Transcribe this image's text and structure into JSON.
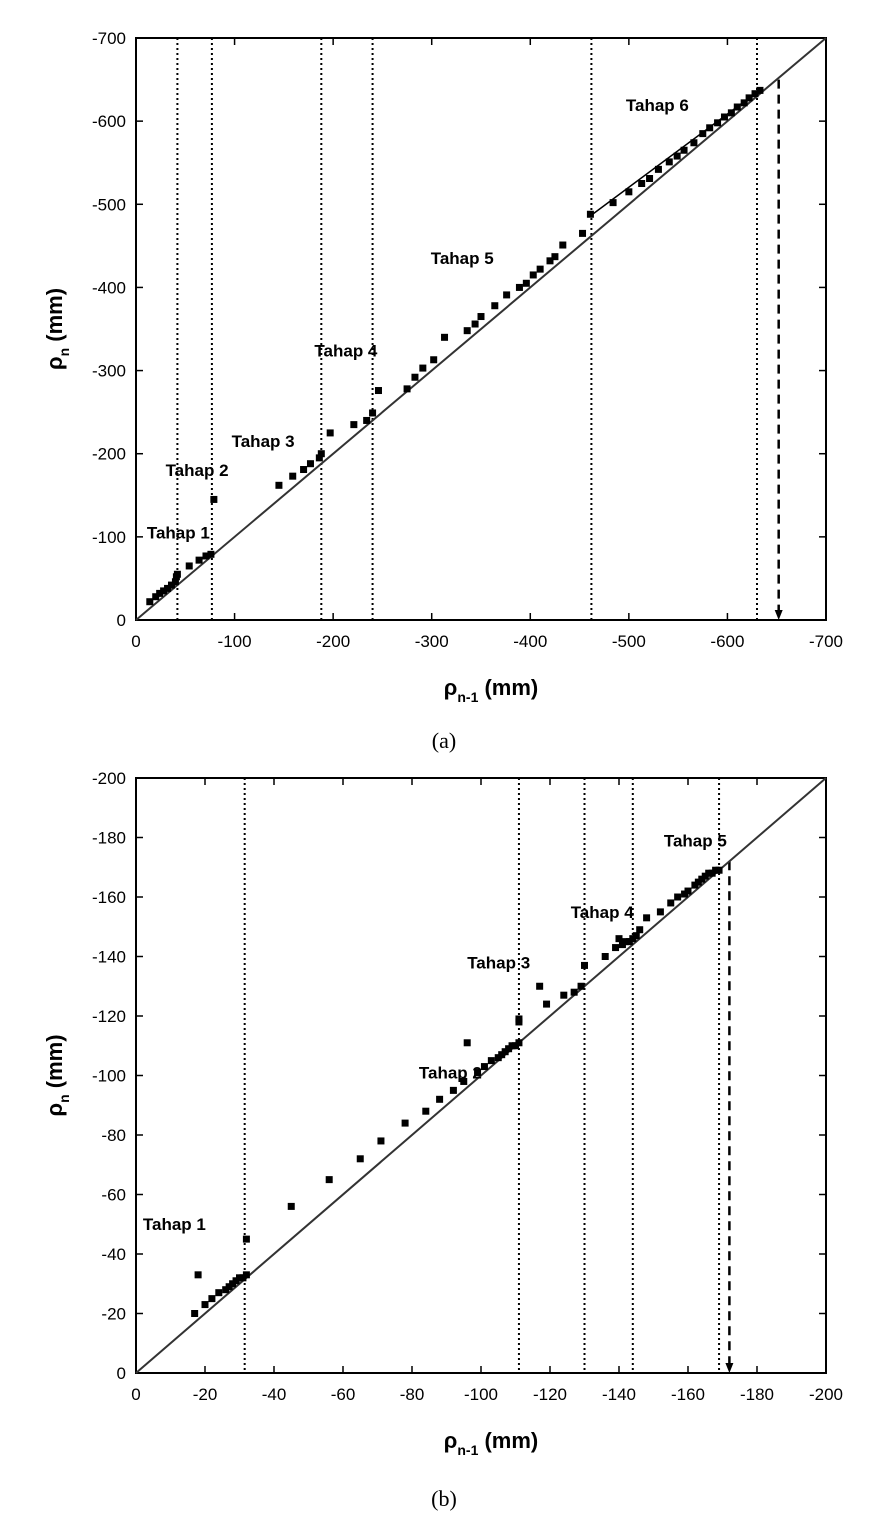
{
  "chart_data": [
    {
      "type": "scatter",
      "caption": "(a)",
      "xlabel": {
        "symbol": "ρ",
        "sub": "n-1",
        "unit": " (mm)"
      },
      "ylabel": {
        "symbol": "ρ",
        "sub": "n",
        "unit": " (mm)"
      },
      "xlim": [
        0,
        -700
      ],
      "ylim": [
        0,
        -700
      ],
      "xticks": [
        0,
        -100,
        -200,
        -300,
        -400,
        -500,
        -600,
        -700
      ],
      "yticks": [
        0,
        -100,
        -200,
        -300,
        -400,
        -500,
        -600,
        -700
      ],
      "xtick_labels": [
        "0",
        "-100",
        "-200",
        "-300",
        "-400",
        "-500",
        "-600",
        "-700"
      ],
      "ytick_labels": [
        "0",
        "-100",
        "-200",
        "-300",
        "-400",
        "-500",
        "-600",
        "-700"
      ],
      "grid": false,
      "reference_line": {
        "from": [
          0,
          0
        ],
        "to": [
          -700,
          -700
        ]
      },
      "stage_boundaries_x": [
        -42,
        -77,
        -188,
        -240,
        -462,
        -630
      ],
      "asymptote_x": -652,
      "asymptote_y_top": -650,
      "stages": [
        {
          "label": "Tahap 1",
          "x": -11,
          "y": -98
        },
        {
          "label": "Tahap 2",
          "x": -30,
          "y": -173
        },
        {
          "label": "Tahap 3",
          "x": -97,
          "y": -208
        },
        {
          "label": "Tahap 4",
          "x": -181,
          "y": -317
        },
        {
          "label": "Tahap 5",
          "x": -299,
          "y": -428
        },
        {
          "label": "Tahap 6",
          "x": -497,
          "y": -612
        }
      ],
      "trend_segments": [
        {
          "from": [
            -462,
            -487
          ],
          "to": [
            -630,
            -635
          ]
        }
      ],
      "points": [
        [
          -14,
          -22
        ],
        [
          -20,
          -28
        ],
        [
          -24,
          -32
        ],
        [
          -28,
          -35
        ],
        [
          -32,
          -38
        ],
        [
          -36,
          -42
        ],
        [
          -40,
          -46
        ],
        [
          -41,
          -52
        ],
        [
          -42,
          -55
        ],
        [
          -54,
          -65
        ],
        [
          -64,
          -72
        ],
        [
          -71,
          -77
        ],
        [
          -76,
          -79
        ],
        [
          -79,
          -145
        ],
        [
          -145,
          -162
        ],
        [
          -159,
          -173
        ],
        [
          -170,
          -181
        ],
        [
          -177,
          -188
        ],
        [
          -186,
          -195
        ],
        [
          -188,
          -200
        ],
        [
          -197,
          -225
        ],
        [
          -221,
          -235
        ],
        [
          -234,
          -240
        ],
        [
          -240,
          -249
        ],
        [
          -246,
          -276
        ],
        [
          -275,
          -278
        ],
        [
          -283,
          -292
        ],
        [
          -291,
          -303
        ],
        [
          -302,
          -313
        ],
        [
          -313,
          -340
        ],
        [
          -336,
          -348
        ],
        [
          -344,
          -356
        ],
        [
          -350,
          -365
        ],
        [
          -364,
          -378
        ],
        [
          -376,
          -391
        ],
        [
          -389,
          -400
        ],
        [
          -396,
          -405
        ],
        [
          -403,
          -415
        ],
        [
          -410,
          -422
        ],
        [
          -420,
          -432
        ],
        [
          -425,
          -437
        ],
        [
          -433,
          -451
        ],
        [
          -453,
          -465
        ],
        [
          -461,
          -488
        ],
        [
          -484,
          -502
        ],
        [
          -500,
          -515
        ],
        [
          -513,
          -525
        ],
        [
          -521,
          -531
        ],
        [
          -530,
          -542
        ],
        [
          -541,
          -551
        ],
        [
          -549,
          -558
        ],
        [
          -556,
          -565
        ],
        [
          -566,
          -574
        ],
        [
          -575,
          -585
        ],
        [
          -582,
          -592
        ],
        [
          -590,
          -598
        ],
        [
          -597,
          -605
        ],
        [
          -604,
          -610
        ],
        [
          -610,
          -617
        ],
        [
          -617,
          -622
        ],
        [
          -622,
          -628
        ],
        [
          -628,
          -633
        ],
        [
          -633,
          -637
        ]
      ]
    },
    {
      "type": "scatter",
      "caption": "(b)",
      "xlabel": {
        "symbol": "ρ",
        "sub": "n-1",
        "unit": " (mm)"
      },
      "ylabel": {
        "symbol": "ρ",
        "sub": "n",
        "unit": " (mm)"
      },
      "xlim": [
        0,
        -200
      ],
      "ylim": [
        0,
        -200
      ],
      "xticks": [
        0,
        -20,
        -40,
        -60,
        -80,
        -100,
        -120,
        -140,
        -160,
        -180,
        -200
      ],
      "yticks": [
        0,
        -20,
        -40,
        -60,
        -80,
        -100,
        -120,
        -140,
        -160,
        -180,
        -200
      ],
      "xtick_labels": [
        "0",
        "-20",
        "-40",
        "-60",
        "-80",
        "-100",
        "-120",
        "-140",
        "-160",
        "-180",
        "-200"
      ],
      "ytick_labels": [
        "0",
        "-20",
        "-40",
        "-60",
        "-80",
        "-100",
        "-120",
        "-140",
        "-160",
        "-180",
        "-200"
      ],
      "grid": false,
      "reference_line": {
        "from": [
          0,
          0
        ],
        "to": [
          -200,
          -200
        ]
      },
      "stage_boundaries_x": [
        -31.5,
        -111,
        -130,
        -144,
        -169
      ],
      "asymptote_x": -172,
      "asymptote_y_top": -172,
      "stages": [
        {
          "label": "Tahap 1",
          "x": -2,
          "y": -48
        },
        {
          "label": "Tahap 2",
          "x": -82,
          "y": -99
        },
        {
          "label": "Tahap 3",
          "x": -96,
          "y": -136
        },
        {
          "label": "Tahap 4",
          "x": -126,
          "y": -153
        },
        {
          "label": "Tahap 5",
          "x": -153,
          "y": -177
        }
      ],
      "trend_segments": [],
      "points": [
        [
          -17,
          -20
        ],
        [
          -18,
          -33
        ],
        [
          -20,
          -23
        ],
        [
          -22,
          -25
        ],
        [
          -24,
          -27
        ],
        [
          -26,
          -28
        ],
        [
          -27,
          -29
        ],
        [
          -28,
          -30
        ],
        [
          -29,
          -31
        ],
        [
          -30,
          -32
        ],
        [
          -31,
          -32
        ],
        [
          -32,
          -33
        ],
        [
          -32,
          -45
        ],
        [
          -45,
          -56
        ],
        [
          -56,
          -65
        ],
        [
          -65,
          -72
        ],
        [
          -71,
          -78
        ],
        [
          -78,
          -84
        ],
        [
          -84,
          -88
        ],
        [
          -88,
          -92
        ],
        [
          -92,
          -95
        ],
        [
          -95,
          -98
        ],
        [
          -96,
          -111
        ],
        [
          -99,
          -101
        ],
        [
          -101,
          -103
        ],
        [
          -103,
          -105
        ],
        [
          -105,
          -106
        ],
        [
          -106,
          -107
        ],
        [
          -107,
          -108
        ],
        [
          -108,
          -109
        ],
        [
          -109,
          -110
        ],
        [
          -110,
          -110
        ],
        [
          -111,
          -111
        ],
        [
          -111,
          -118
        ],
        [
          -111,
          -119
        ],
        [
          -117,
          -130
        ],
        [
          -119,
          -124
        ],
        [
          -124,
          -127
        ],
        [
          -127,
          -128
        ],
        [
          -129,
          -130
        ],
        [
          -130,
          -137
        ],
        [
          -136,
          -140
        ],
        [
          -139,
          -143
        ],
        [
          -140,
          -146
        ],
        [
          -141,
          -144
        ],
        [
          -142,
          -145
        ],
        [
          -143,
          -145
        ],
        [
          -144,
          -146
        ],
        [
          -145,
          -147
        ],
        [
          -146,
          -149
        ],
        [
          -148,
          -153
        ],
        [
          -152,
          -155
        ],
        [
          -155,
          -158
        ],
        [
          -157,
          -160
        ],
        [
          -159,
          -161
        ],
        [
          -160,
          -162
        ],
        [
          -162,
          -164
        ],
        [
          -163,
          -165
        ],
        [
          -164,
          -166
        ],
        [
          -165,
          -167
        ],
        [
          -166,
          -168
        ],
        [
          -167,
          -168
        ],
        [
          -168,
          -169
        ],
        [
          -169,
          -169
        ]
      ]
    }
  ]
}
